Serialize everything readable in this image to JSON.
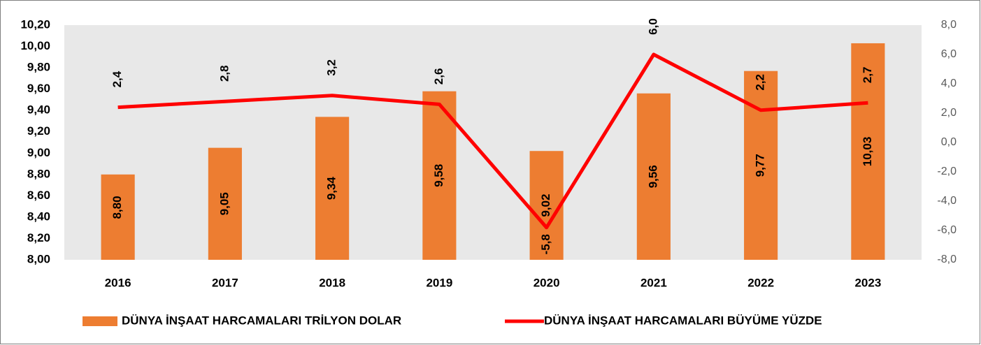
{
  "chart_data": {
    "type": "bar",
    "categories": [
      "2016",
      "2017",
      "2018",
      "2019",
      "2020",
      "2021",
      "2022",
      "2023"
    ],
    "series": [
      {
        "name": "DÜNYA İNŞAAT HARCAMALARI TRİLYON DOLAR",
        "type": "bar",
        "color": "#ed7d31",
        "values": [
          8.8,
          9.05,
          9.34,
          9.58,
          9.02,
          9.56,
          9.77,
          10.03
        ],
        "value_labels": [
          "8,80",
          "9,05",
          "9,34",
          "9,58",
          "9,02",
          "9,56",
          "9,77",
          "10,03"
        ]
      },
      {
        "name": "DÜNYA İNŞAAT HARCAMALARI BÜYÜME YÜZDE",
        "type": "line",
        "color": "#ff0000",
        "axis": "y2",
        "values": [
          2.4,
          2.8,
          3.2,
          2.6,
          -5.8,
          6.0,
          2.2,
          2.7
        ],
        "value_labels": [
          "2,4",
          "2,8",
          "3,2",
          "2,6",
          "-5,8",
          "6,0",
          "2,2",
          "2,7"
        ]
      }
    ],
    "ylim": [
      8.0,
      10.2
    ],
    "yticks": [
      {
        "value": 8.0,
        "label": "8,00"
      },
      {
        "value": 8.2,
        "label": "8,20"
      },
      {
        "value": 8.4,
        "label": "8,40"
      },
      {
        "value": 8.6,
        "label": "8,60"
      },
      {
        "value": 8.8,
        "label": "8,80"
      },
      {
        "value": 9.0,
        "label": "9,00"
      },
      {
        "value": 9.2,
        "label": "9,20"
      },
      {
        "value": 9.4,
        "label": "9,40"
      },
      {
        "value": 9.6,
        "label": "9,60"
      },
      {
        "value": 9.8,
        "label": "9,80"
      },
      {
        "value": 10.0,
        "label": "10,00"
      },
      {
        "value": 10.2,
        "label": "10,20"
      }
    ],
    "y2lim": [
      -8,
      8
    ],
    "y2ticks": [
      {
        "value": -8,
        "label": "-8,0"
      },
      {
        "value": -6,
        "label": "-6,0"
      },
      {
        "value": -4,
        "label": "-4,0"
      },
      {
        "value": -2,
        "label": "-2,0"
      },
      {
        "value": 0,
        "label": "0,0"
      },
      {
        "value": 2,
        "label": "2,0"
      },
      {
        "value": 4,
        "label": "4,0"
      },
      {
        "value": 6,
        "label": "6,0"
      },
      {
        "value": 8,
        "label": "8,0"
      }
    ],
    "grid": false,
    "legend": "bottom"
  }
}
